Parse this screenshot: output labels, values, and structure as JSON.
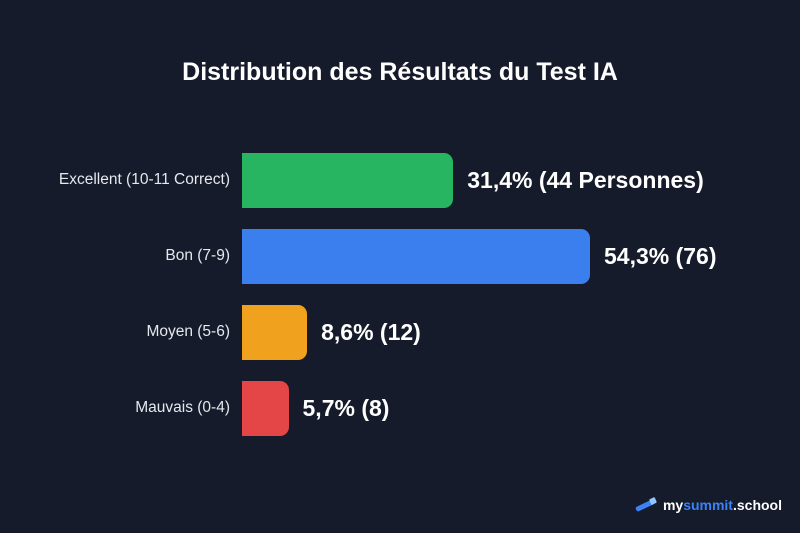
{
  "chart_data": {
    "type": "bar",
    "orientation": "horizontal",
    "title": "Distribution des Résultats du Test IA",
    "categories": [
      "Excellent (10-11 Correct)",
      "Bon (7-9)",
      "Moyen (5-6)",
      "Mauvais (0-4)"
    ],
    "values": [
      31.4,
      54.3,
      8.6,
      5.7
    ],
    "data_labels": [
      "31,4% (44 Personnes)",
      "54,3% (76)",
      "8,6% (12)",
      "5,7% (8)"
    ],
    "colors": [
      "#27b562",
      "#3b7fef",
      "#f0a21e",
      "#e44546"
    ],
    "xlabel": "",
    "ylabel": "",
    "grid": false
  },
  "logo": {
    "part1": "my",
    "part2": "summit",
    "part3": ".school"
  },
  "background": "#151b2a"
}
